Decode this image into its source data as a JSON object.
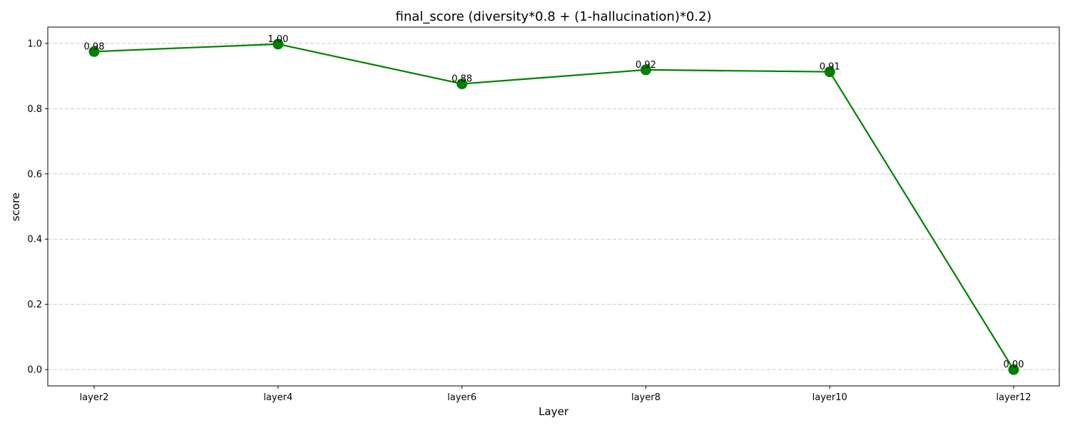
{
  "chart_data": {
    "type": "line",
    "title": "final_score (diversity*0.8 + (1-hallucination)*0.2)",
    "xlabel": "Layer",
    "ylabel": "score",
    "categories": [
      "layer2",
      "layer4",
      "layer6",
      "layer8",
      "layer10",
      "layer12"
    ],
    "series": [
      {
        "values": [
          0.975,
          0.998,
          0.876,
          0.919,
          0.913,
          0.0
        ],
        "labels": [
          "0.98",
          "1.00",
          "0.88",
          "0.92",
          "0.91",
          "0.00"
        ],
        "color": "#008000"
      }
    ],
    "ylim": [
      -0.05,
      1.05
    ],
    "yticks": [
      0.0,
      0.2,
      0.4,
      0.6,
      0.8,
      1.0
    ],
    "ytick_labels": [
      "0.0",
      "0.2",
      "0.4",
      "0.6",
      "0.8",
      "1.0"
    ],
    "grid": "y-dashed",
    "legend": "none"
  }
}
